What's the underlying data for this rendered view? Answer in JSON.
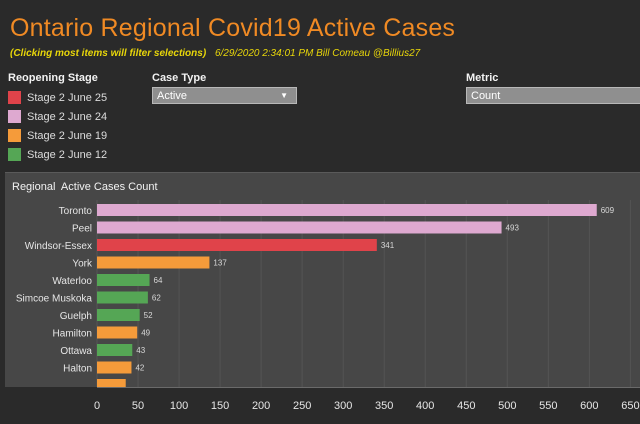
{
  "header": {
    "title": "Ontario Regional Covid19  Active Cases",
    "hint": "(Clicking most items will filter selections)",
    "meta": "6/29/2020 2:34:01 PM  Bill Comeau @Billius27"
  },
  "legend": {
    "title": "Reopening Stage",
    "items": [
      {
        "label": "Stage 2 June 25",
        "color": "#e0434a"
      },
      {
        "label": "Stage 2 June 24",
        "color": "#dea9d0"
      },
      {
        "label": "Stage 2 June 19",
        "color": "#f59b3a"
      },
      {
        "label": "Stage 2 June 12",
        "color": "#55a655"
      }
    ]
  },
  "filters": {
    "case_type": {
      "label": "Case Type",
      "value": "Active"
    },
    "metric": {
      "label": "Metric",
      "value": "Count"
    }
  },
  "chart_title": "Regional  Active Cases Count",
  "chart_data": {
    "type": "bar",
    "orientation": "horizontal",
    "categories": [
      "Toronto",
      "Peel",
      "Windsor-Essex",
      "York",
      "Waterloo",
      "Simcoe Muskoka",
      "Guelph",
      "Hamilton",
      "Ottawa",
      "Halton"
    ],
    "values": [
      609,
      493,
      341,
      137,
      64,
      62,
      52,
      49,
      43,
      42
    ],
    "value_labels": [
      "609",
      "493",
      "341",
      "137",
      "64",
      "62",
      "52",
      "49",
      "43",
      "42"
    ],
    "stage": [
      "Stage 2 June 24",
      "Stage 2 June 24",
      "Stage 2 June 25",
      "Stage 2 June 19",
      "Stage 2 June 12",
      "Stage 2 June 12",
      "Stage 2 June 12",
      "Stage 2 June 19",
      "Stage 2 June 12",
      "Stage 2 June 19"
    ],
    "partial_next_bar": {
      "stage": "Stage 2 June 19",
      "value": 35
    },
    "xlim": [
      0,
      650
    ],
    "xticks": [
      0,
      50,
      100,
      150,
      200,
      250,
      300,
      350,
      400,
      450,
      500,
      550,
      600,
      650
    ],
    "xtick_labels": [
      "0",
      "50",
      "100",
      "150",
      "200",
      "250",
      "300",
      "350",
      "400",
      "450",
      "500",
      "550",
      "600",
      "650"
    ]
  }
}
